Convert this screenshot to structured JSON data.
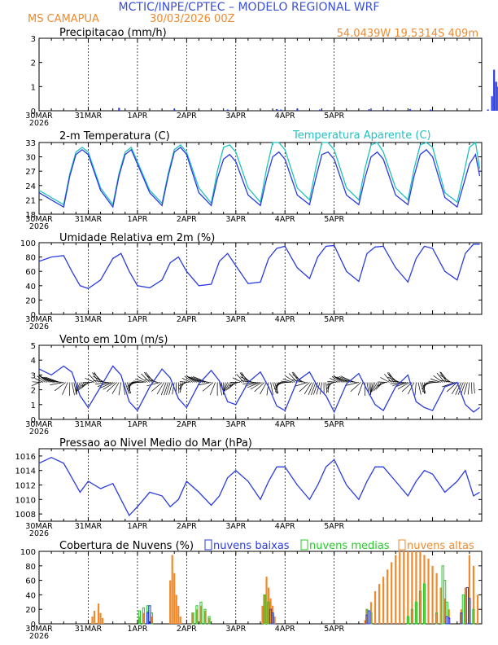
{
  "header": {
    "title": "MCTIC/INPE/CPTEC – MODELO REGIONAL WRF",
    "location": "MS CAMAPUA",
    "run": "30/03/2026 00Z",
    "coords": "54.0439W 19.5314S 409m"
  },
  "colors": {
    "title": "#3a4fd8",
    "orange": "#f08a2c",
    "blue": "#2a3ce0",
    "cyan": "#22c0c0",
    "green": "#28c828",
    "black": "#000000"
  },
  "x_axis": {
    "tick_labels": [
      "30MAR",
      "31MAR",
      "1APR",
      "2APR",
      "3APR",
      "4APR",
      "5APR"
    ],
    "year": "2026"
  },
  "panels": [
    {
      "id": "precip",
      "title": "Precipitacao (mm/h)",
      "y_ticks": [
        "0",
        "1",
        "2",
        "3"
      ]
    },
    {
      "id": "temp",
      "title": "2-m Temperatura (C)",
      "legend": "Temperatura Aparente (C)",
      "y_ticks": [
        "18",
        "21",
        "24",
        "27",
        "30",
        "33"
      ]
    },
    {
      "id": "rh",
      "title": "Umidade Relativa em 2m (%)",
      "y_ticks": [
        "0",
        "20",
        "40",
        "60",
        "80",
        "100"
      ]
    },
    {
      "id": "wind",
      "title": "Vento em 10m (m/s)",
      "y_ticks": [
        "0",
        "1",
        "2",
        "3",
        "4",
        "5"
      ]
    },
    {
      "id": "pres",
      "title": "Pressao ao Nivel Medio do Mar (hPa)",
      "y_ticks": [
        "1008",
        "1010",
        "1012",
        "1014",
        "1016"
      ]
    },
    {
      "id": "cloud",
      "title": "Cobertura de Nuvens (%)",
      "legend": [
        "nuvens baixas",
        "nuvens medias",
        "nuvens altas"
      ],
      "y_ticks": [
        "0",
        "20",
        "40",
        "60",
        "80",
        "100"
      ]
    }
  ],
  "chart_data": [
    {
      "type": "bar",
      "title": "Precipitacao (mm/h)",
      "x_unit": "hours from 30MAR 00Z",
      "ylim": [
        0,
        3
      ],
      "x": [
        39,
        66,
        92,
        116,
        118,
        126,
        137,
        161,
        170,
        181,
        191,
        219,
        221,
        222,
        223,
        224
      ],
      "values": [
        0.12,
        0.06,
        0.05,
        0.07,
        0.05,
        0.08,
        0.05,
        0.06,
        0.04,
        0.07,
        0.05,
        0.05,
        0.6,
        1.7,
        1.2,
        1.0
      ]
    },
    {
      "type": "line",
      "title": "2-m Temperatura (C)",
      "ylim": [
        18,
        33
      ],
      "x": [
        0,
        6,
        12,
        15,
        18,
        21,
        24,
        30,
        36,
        39,
        42,
        45,
        48,
        54,
        60,
        63,
        66,
        69,
        72,
        78,
        84,
        87,
        90,
        93,
        96,
        102,
        108,
        111,
        114,
        117,
        120,
        126,
        132,
        135,
        138,
        141,
        144,
        150,
        156,
        159,
        162,
        165,
        168,
        174,
        180,
        183,
        186,
        189,
        192,
        198,
        204,
        207,
        210,
        213,
        215
      ],
      "series": [
        {
          "name": "2-m Temperatura (C)",
          "values": [
            22.5,
            21.0,
            19.5,
            26.0,
            30.5,
            31.5,
            30.5,
            23.0,
            19.5,
            26.0,
            30.5,
            31.5,
            28.5,
            22.5,
            19.8,
            26.0,
            31.0,
            32.0,
            30.5,
            22.5,
            19.8,
            25.5,
            29.5,
            30.5,
            29.0,
            22.0,
            19.8,
            25.5,
            30.0,
            31.0,
            29.5,
            22.0,
            20.0,
            25.5,
            30.5,
            31.0,
            29.5,
            22.0,
            20.0,
            25.5,
            30.0,
            31.0,
            29.5,
            22.0,
            20.0,
            26.0,
            30.5,
            31.5,
            30.0,
            21.5,
            19.5,
            24.0,
            28.5,
            30.5,
            26.0
          ]
        },
        {
          "name": "Temperatura Aparente (C)",
          "values": [
            23.0,
            21.5,
            20.0,
            26.5,
            31.0,
            32.0,
            31.0,
            23.5,
            20.0,
            26.5,
            31.0,
            32.0,
            29.0,
            23.0,
            20.3,
            26.5,
            31.5,
            32.5,
            31.0,
            23.5,
            20.3,
            27.0,
            32.0,
            32.5,
            31.0,
            23.5,
            20.5,
            27.5,
            33.0,
            33.0,
            31.5,
            23.5,
            21.0,
            27.5,
            33.0,
            33.0,
            31.5,
            23.5,
            21.0,
            27.5,
            32.5,
            33.0,
            31.0,
            23.5,
            21.0,
            27.5,
            32.5,
            33.0,
            32.0,
            22.5,
            20.5,
            26.0,
            32.0,
            33.0,
            27.5
          ]
        }
      ]
    },
    {
      "type": "line",
      "title": "Umidade Relativa em 2m (%)",
      "ylim": [
        0,
        100
      ],
      "x": [
        0,
        6,
        12,
        16,
        20,
        24,
        30,
        36,
        40,
        44,
        48,
        54,
        60,
        64,
        68,
        72,
        78,
        84,
        88,
        92,
        96,
        102,
        108,
        112,
        116,
        120,
        126,
        132,
        136,
        140,
        144,
        150,
        156,
        160,
        164,
        168,
        174,
        180,
        184,
        188,
        192,
        198,
        204,
        208,
        212,
        215
      ],
      "values": [
        74,
        80,
        82,
        60,
        40,
        36,
        48,
        78,
        85,
        60,
        40,
        37,
        48,
        72,
        80,
        60,
        40,
        42,
        74,
        85,
        68,
        43,
        45,
        78,
        92,
        95,
        65,
        50,
        80,
        95,
        96,
        60,
        46,
        85,
        94,
        95,
        65,
        45,
        78,
        95,
        92,
        60,
        48,
        85,
        98,
        98
      ]
    },
    {
      "type": "line",
      "title": "Vento em 10m (m/s)",
      "ylim": [
        0,
        5
      ],
      "x": [
        0,
        6,
        12,
        16,
        20,
        24,
        30,
        36,
        40,
        44,
        48,
        54,
        60,
        64,
        68,
        72,
        78,
        84,
        88,
        92,
        96,
        102,
        108,
        112,
        116,
        120,
        126,
        132,
        136,
        140,
        144,
        150,
        156,
        160,
        164,
        168,
        174,
        180,
        184,
        188,
        192,
        198,
        204,
        208,
        212,
        215
      ],
      "values": [
        3.4,
        3.0,
        3.6,
        3.2,
        1.6,
        0.8,
        2.2,
        3.6,
        3.0,
        1.2,
        0.6,
        2.2,
        3.4,
        2.8,
        1.4,
        0.8,
        2.4,
        3.3,
        2.6,
        1.2,
        1.0,
        2.5,
        3.2,
        2.2,
        0.9,
        0.6,
        2.6,
        3.2,
        2.2,
        1.6,
        0.5,
        2.4,
        3.1,
        2.0,
        1.0,
        0.6,
        2.2,
        3.0,
        1.2,
        0.8,
        0.6,
        2.2,
        2.5,
        1.0,
        0.5,
        0.8
      ]
    },
    {
      "type": "line",
      "title": "Pressao ao Nivel Medio do Mar (hPa)",
      "ylim": [
        1007,
        1017
      ],
      "x": [
        0,
        6,
        12,
        16,
        20,
        24,
        30,
        36,
        40,
        44,
        48,
        54,
        60,
        64,
        68,
        72,
        78,
        84,
        88,
        92,
        96,
        102,
        108,
        112,
        116,
        120,
        126,
        132,
        136,
        140,
        144,
        150,
        156,
        160,
        164,
        168,
        174,
        180,
        184,
        188,
        192,
        198,
        204,
        208,
        212,
        215
      ],
      "values": [
        1015.0,
        1015.8,
        1015.0,
        1013.0,
        1011.0,
        1012.5,
        1011.5,
        1012.2,
        1010.0,
        1007.8,
        1009.0,
        1011.0,
        1010.5,
        1009.0,
        1010.0,
        1012.5,
        1011.0,
        1009.2,
        1010.5,
        1013.0,
        1014.0,
        1012.5,
        1010.0,
        1012.5,
        1014.5,
        1014.5,
        1012.0,
        1010.0,
        1012.0,
        1014.5,
        1015.5,
        1012.0,
        1010.0,
        1012.5,
        1014.5,
        1014.5,
        1012.5,
        1010.5,
        1012.5,
        1014.0,
        1013.5,
        1011.0,
        1012.5,
        1014.0,
        1010.5,
        1011.0
      ]
    },
    {
      "type": "bar",
      "title": "Cobertura de Nuvens (%)",
      "ylim": [
        0,
        100
      ],
      "series": [
        {
          "name": "nuvens baixas",
          "x": [
            53,
            54,
            113,
            114,
            160,
            161,
            199,
            200,
            206,
            209,
            210
          ],
          "values": [
            15,
            25,
            20,
            15,
            12,
            18,
            10,
            8,
            15,
            50,
            35
          ]
        },
        {
          "name": "nuvens medias",
          "x": [
            49,
            51,
            53,
            55,
            75,
            77,
            79,
            81,
            83,
            110,
            112,
            114,
            160,
            162,
            180,
            182,
            184,
            186,
            188,
            194,
            197,
            198,
            199,
            207,
            210,
            212
          ],
          "values": [
            18,
            22,
            25,
            15,
            15,
            25,
            30,
            20,
            10,
            40,
            30,
            12,
            20,
            15,
            10,
            20,
            30,
            45,
            55,
            15,
            80,
            60,
            30,
            40,
            30,
            20
          ]
        },
        {
          "name": "nuvens altas",
          "x": [
            26,
            27,
            29,
            30,
            31,
            49,
            51,
            53,
            55,
            64,
            65,
            66,
            67,
            68,
            69,
            75,
            77,
            79,
            81,
            83,
            109,
            110,
            111,
            112,
            113,
            114,
            115,
            159,
            160,
            162,
            164,
            166,
            168,
            170,
            172,
            174,
            176,
            178,
            180,
            182,
            184,
            186,
            188,
            190,
            192,
            194,
            196,
            198,
            200,
            206,
            208,
            210,
            212,
            214
          ],
          "values": [
            10,
            18,
            28,
            15,
            8,
            10,
            15,
            18,
            10,
            60,
            95,
            70,
            40,
            25,
            10,
            15,
            20,
            25,
            18,
            8,
            25,
            40,
            65,
            50,
            35,
            25,
            10,
            5,
            20,
            30,
            45,
            55,
            65,
            75,
            85,
            95,
            100,
            100,
            100,
            100,
            100,
            100,
            95,
            90,
            80,
            70,
            50,
            35,
            20,
            20,
            50,
            95,
            80,
            40
          ]
        }
      ]
    }
  ]
}
